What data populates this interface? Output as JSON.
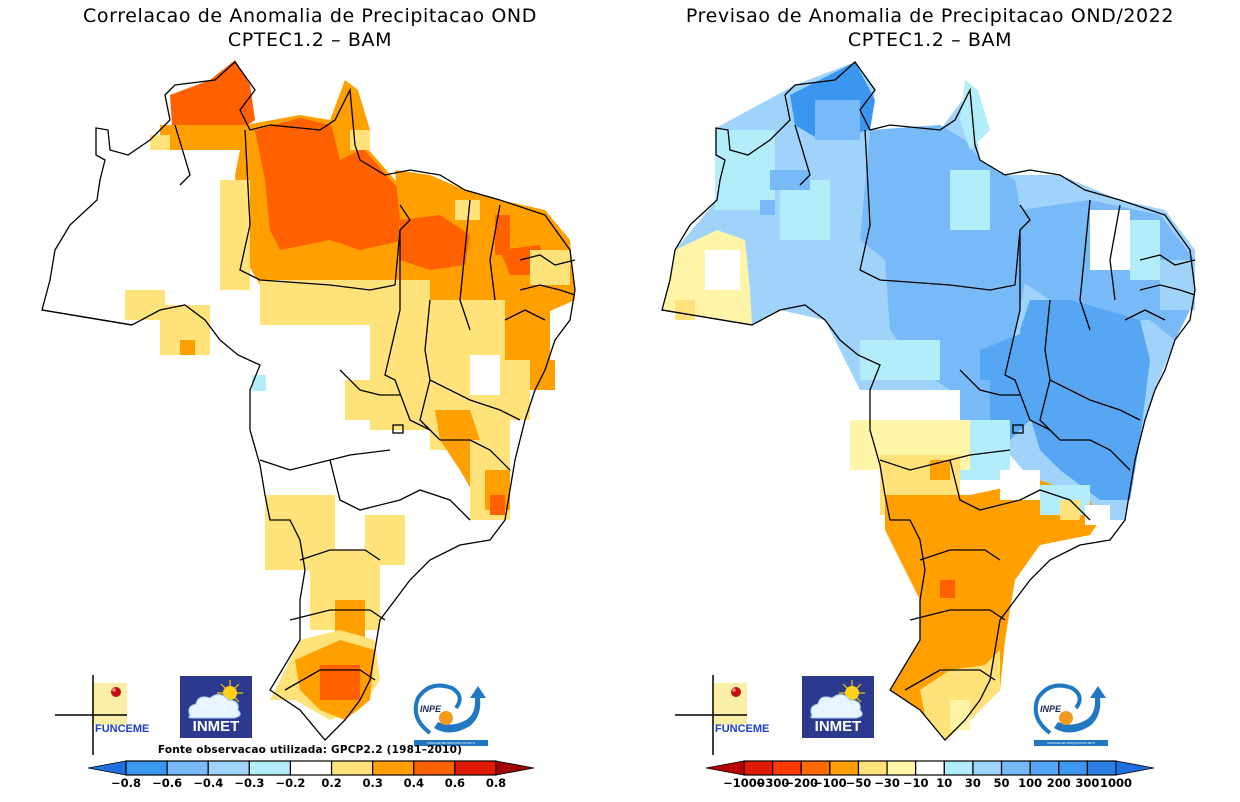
{
  "panels": [
    {
      "id": "correlation",
      "title_line1": "Correlacao de Anomalia de Precipitacao OND",
      "title_line2": "CPTEC1.2 – BAM",
      "source_note": "Fonte observacao utilizada: GPCP2.2 (1981–2010)",
      "legend": {
        "labels": [
          "−0.8",
          "−0.6",
          "−0.4",
          "−0.3",
          "−0.2",
          "0.2",
          "0.3",
          "0.4",
          "0.6",
          "0.8"
        ],
        "colors": [
          "#1f6fe0",
          "#3b96f0",
          "#78b9f7",
          "#9fd3fa",
          "#b3edf9",
          "#ffffff",
          "#ffe27a",
          "#ffa000",
          "#ff6000",
          "#e01a00",
          "#a30000"
        ]
      },
      "dominant_pattern": "positive correlation (0.2 to 0.6) over north, northeast and south; near-zero over central-west"
    },
    {
      "id": "forecast",
      "title_line1": "Previsao de Anomalia de Precipitacao OND/2022",
      "title_line2": "CPTEC1.2 – BAM",
      "legend": {
        "labels": [
          "−1000",
          "−300",
          "−200",
          "−100",
          "−50",
          "−30",
          "−10",
          "10",
          "30",
          "50",
          "100",
          "200",
          "300",
          "1000"
        ],
        "colors": [
          "#b80000",
          "#e01a00",
          "#ff3a00",
          "#ff6a00",
          "#ffa000",
          "#ffe27a",
          "#fff5a8",
          "#ffffff",
          "#b3edf9",
          "#9fd3fa",
          "#78b9f7",
          "#56a6f3",
          "#3b96f0",
          "#2b7ee6",
          "#1f6fe0"
        ]
      },
      "dominant_pattern": "positive anomaly (blue, 10 to 200 mm) over north, northeast and southeast; negative anomaly (orange, -100 to -50 mm) over south and central-west south"
    }
  ],
  "logos": {
    "funceme": "FUNCEME",
    "inmet": "INMET",
    "inpe": "INPE",
    "inpe_band": "UNIDADE DE PESQUISA DO MCTI"
  }
}
